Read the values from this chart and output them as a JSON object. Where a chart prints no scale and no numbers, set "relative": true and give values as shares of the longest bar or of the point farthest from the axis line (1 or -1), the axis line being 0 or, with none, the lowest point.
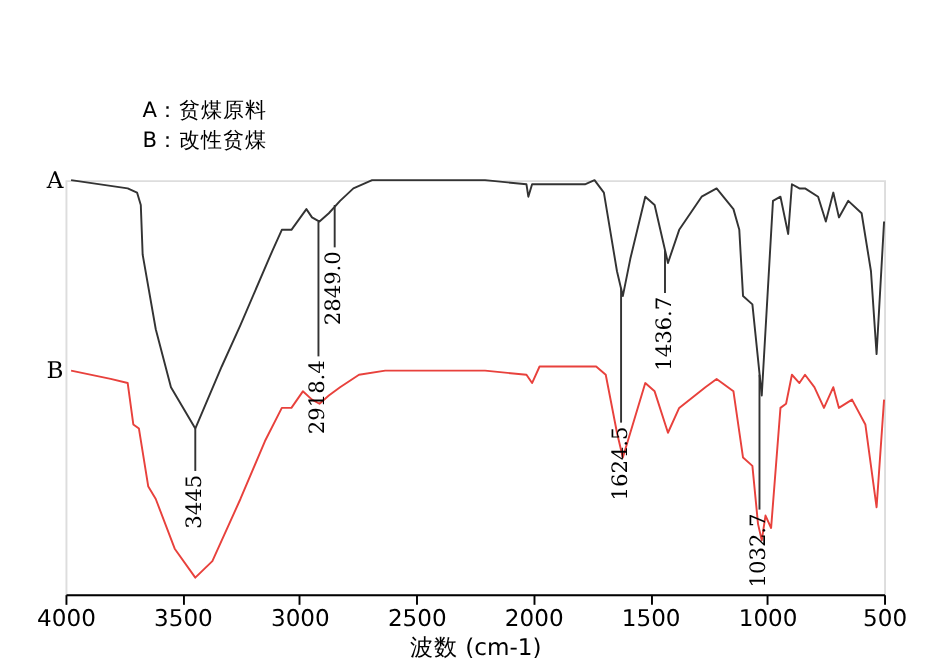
{
  "chart_data": {
    "type": "line",
    "relative": true,
    "xlabel": "波数 (cm-1)",
    "xlim": [
      4000,
      500
    ],
    "xticks": [
      4000,
      3500,
      3000,
      2500,
      2000,
      1500,
      1000,
      500
    ],
    "tick_labels": "x",
    "grid": false,
    "line_style": "solid",
    "marker": "none",
    "series": [
      {
        "name": "A",
        "color": "#333333",
        "x": [
          3976,
          3734,
          3694,
          3678,
          3670,
          3614,
          3549,
          3445,
          3332,
          3252,
          3115,
          3075,
          3034,
          2970,
          2946,
          2914,
          2874,
          2826,
          2769,
          2689,
          2206,
          2029,
          2021,
          2005,
          1779,
          1738,
          1698,
          1642,
          1617,
          1585,
          1521,
          1481,
          1424,
          1376,
          1280,
          1216,
          1144,
          1119,
          1103,
          1063,
          1023,
          975,
          943,
          910,
          894,
          862,
          838,
          782,
          749,
          717,
          693,
          653,
          596,
          556,
          532,
          500
        ],
        "values": [
          1.0,
          0.98,
          0.97,
          0.94,
          0.82,
          0.64,
          0.5,
          0.4,
          0.55,
          0.65,
          0.83,
          0.88,
          0.88,
          0.93,
          0.91,
          0.9,
          0.92,
          0.95,
          0.98,
          1.0,
          1.0,
          0.99,
          0.96,
          0.99,
          0.99,
          1.0,
          0.97,
          0.78,
          0.72,
          0.81,
          0.96,
          0.94,
          0.8,
          0.88,
          0.96,
          0.98,
          0.93,
          0.88,
          0.72,
          0.7,
          0.48,
          0.95,
          0.96,
          0.87,
          0.99,
          0.98,
          0.98,
          0.96,
          0.9,
          0.97,
          0.91,
          0.95,
          0.92,
          0.78,
          0.58,
          0.9
        ]
      },
      {
        "name": "B",
        "color": "#e8413c",
        "x": [
          3976,
          3807,
          3734,
          3710,
          3686,
          3646,
          3614,
          3533,
          3445,
          3372,
          3252,
          3147,
          3075,
          3034,
          2985,
          2946,
          2914,
          2874,
          2826,
          2745,
          2633,
          2206,
          2029,
          2005,
          1973,
          1731,
          1690,
          1642,
          1617,
          1585,
          1521,
          1481,
          1424,
          1376,
          1264,
          1216,
          1144,
          1103,
          1063,
          1039,
          1023,
          1007,
          983,
          943,
          919,
          894,
          862,
          838,
          798,
          757,
          717,
          693,
          637,
          580,
          532,
          500
        ],
        "values": [
          0.54,
          0.52,
          0.51,
          0.41,
          0.4,
          0.26,
          0.23,
          0.11,
          0.04,
          0.08,
          0.23,
          0.37,
          0.45,
          0.45,
          0.49,
          0.47,
          0.46,
          0.48,
          0.5,
          0.53,
          0.54,
          0.54,
          0.53,
          0.51,
          0.55,
          0.55,
          0.53,
          0.39,
          0.33,
          0.39,
          0.51,
          0.49,
          0.39,
          0.45,
          0.5,
          0.52,
          0.49,
          0.33,
          0.31,
          0.17,
          0.13,
          0.19,
          0.16,
          0.45,
          0.46,
          0.53,
          0.51,
          0.53,
          0.5,
          0.45,
          0.5,
          0.45,
          0.47,
          0.41,
          0.21,
          0.47
        ]
      }
    ],
    "annotations": [
      "A：贫煤原料",
      "B：改性贫煤",
      {
        "text": "3445",
        "x": 3445,
        "y": 0.4
      },
      {
        "text": "2918.4",
        "x": 2918.4,
        "y": 0.9
      },
      {
        "text": "2849.0",
        "x": 2849.0,
        "y": 0.94
      },
      {
        "text": "1624.5",
        "x": 1624.5,
        "y": 0.74
      },
      {
        "text": "1436.7",
        "x": 1436.7,
        "y": 0.83
      },
      {
        "text": "1032.7",
        "x": 1032.7,
        "y": 0.53
      }
    ]
  }
}
